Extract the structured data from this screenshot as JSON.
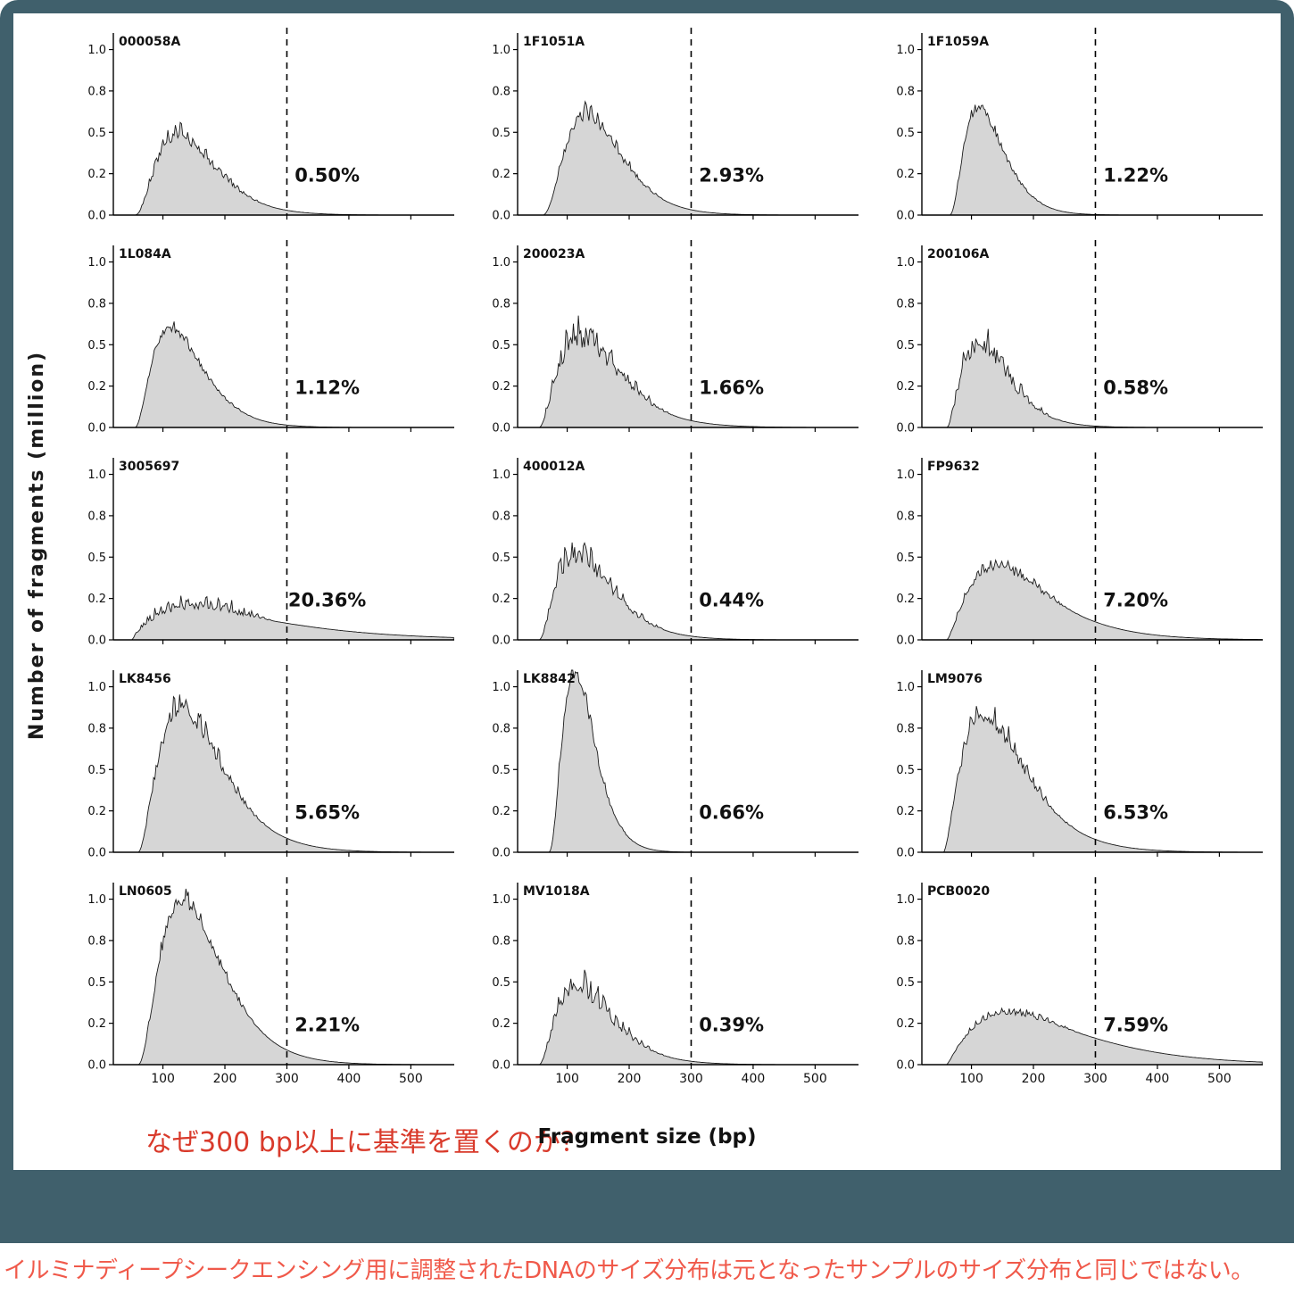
{
  "page": {
    "frame_color": "#40606c",
    "figure_background": "#ffffff"
  },
  "annotations": {
    "question": "なぜ300 bp以上に基準を置くのか？",
    "question_color": "#d93a2b",
    "caption": "イルミナディープシークエンシング用に調整されたDNAのサイズ分布は元となったサンプルのサイズ分布と同じではない。",
    "caption_color": "#f0594a"
  },
  "chart_data": {
    "type": "area",
    "title": "",
    "xlabel": "Fragment size (bp)",
    "ylabel": "Number of fragments (million)",
    "xlim": [
      20,
      570
    ],
    "ylim": [
      0,
      1.1
    ],
    "x_ticks": [
      100,
      200,
      300,
      400,
      500
    ],
    "y_ticks": [
      0,
      0.25,
      0.5,
      0.75,
      1.0
    ],
    "y_tick_labels": [
      "0.0",
      "0.2",
      "0.5",
      "0.8",
      "1.0"
    ],
    "threshold_x": 300,
    "threshold_style": "dashed",
    "grid": false,
    "fill_color": "#d6d6d6",
    "line_color": "#1a1a1a",
    "layout": {
      "rows": 5,
      "cols": 3
    },
    "panels": [
      {
        "id": "000058A",
        "percent": "0.50%",
        "onset": 55,
        "peak_x": 125,
        "peak_y": 0.45,
        "shape": 2.2,
        "noise": 0.14
      },
      {
        "id": "1F1051A",
        "percent": "2.93%",
        "onset": 60,
        "peak_x": 130,
        "peak_y": 0.57,
        "shape": 2.4,
        "noise": 0.1
      },
      {
        "id": "1F1059A",
        "percent": "1.22%",
        "onset": 65,
        "peak_x": 112,
        "peak_y": 0.62,
        "shape": 2.2,
        "noise": 0.07
      },
      {
        "id": "1L084A",
        "percent": "1.12%",
        "onset": 55,
        "peak_x": 112,
        "peak_y": 0.58,
        "shape": 2.0,
        "noise": 0.06
      },
      {
        "id": "200023A",
        "percent": "1.66%",
        "onset": 55,
        "peak_x": 122,
        "peak_y": 0.48,
        "shape": 1.8,
        "noise": 0.22
      },
      {
        "id": "200106A",
        "percent": "0.58%",
        "onset": 60,
        "peak_x": 112,
        "peak_y": 0.45,
        "shape": 1.9,
        "noise": 0.22
      },
      {
        "id": "3005697",
        "percent": "20.36%",
        "onset": 50,
        "peak_x": 150,
        "peak_y": 0.18,
        "shape": 1.0,
        "noise": 0.26
      },
      {
        "id": "400012A",
        "percent": "0.44%",
        "onset": 55,
        "peak_x": 115,
        "peak_y": 0.46,
        "shape": 1.8,
        "noise": 0.22
      },
      {
        "id": "FP9632",
        "percent": "7.20%",
        "onset": 60,
        "peak_x": 140,
        "peak_y": 0.42,
        "shape": 1.5,
        "noise": 0.1
      },
      {
        "id": "LK8456",
        "percent": "5.65%",
        "onset": 60,
        "peak_x": 130,
        "peak_y": 0.82,
        "shape": 1.9,
        "noise": 0.1
      },
      {
        "id": "LK8842",
        "percent": "0.66%",
        "onset": 70,
        "peak_x": 112,
        "peak_y": 1.05,
        "shape": 2.6,
        "noise": 0.07
      },
      {
        "id": "LM9076",
        "percent": "6.53%",
        "onset": 55,
        "peak_x": 120,
        "peak_y": 0.78,
        "shape": 1.6,
        "noise": 0.1
      },
      {
        "id": "LN0605",
        "percent": "2.21%",
        "onset": 60,
        "peak_x": 132,
        "peak_y": 0.95,
        "shape": 2.1,
        "noise": 0.07
      },
      {
        "id": "MV1018A",
        "percent": "0.39%",
        "onset": 55,
        "peak_x": 115,
        "peak_y": 0.42,
        "shape": 1.8,
        "noise": 0.2
      },
      {
        "id": "PCB0020",
        "percent": "7.59%",
        "onset": 60,
        "peak_x": 160,
        "peak_y": 0.3,
        "shape": 1.2,
        "noise": 0.08
      }
    ]
  }
}
